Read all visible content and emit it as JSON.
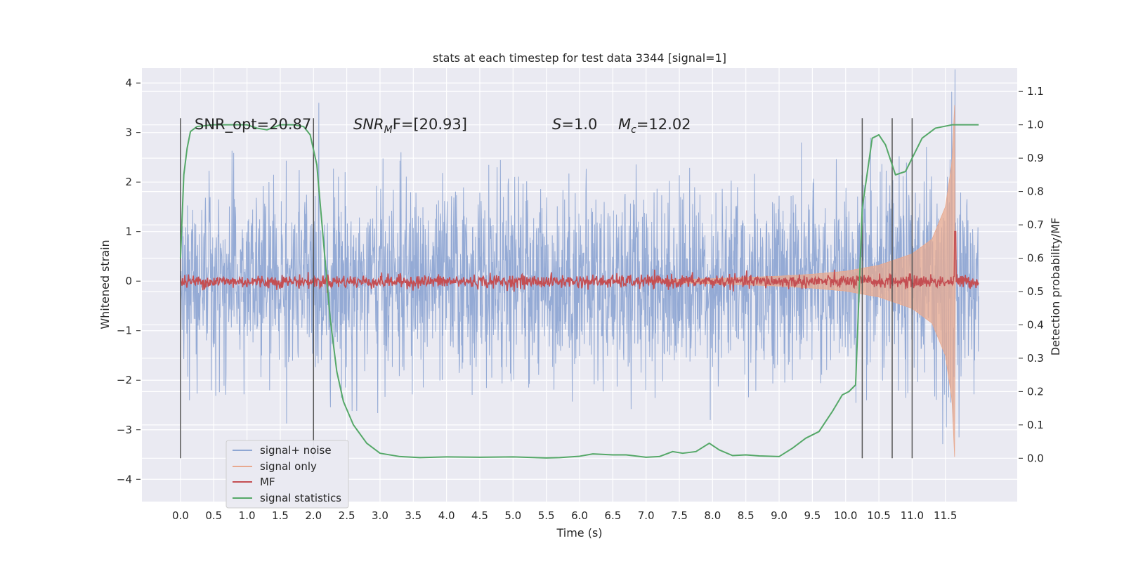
{
  "chart_data": {
    "type": "line",
    "title": "stats at each timestep for test data 3344 [signal=1]",
    "xlabel": "Time (s)",
    "ylabel": "Whitened strain",
    "y2label": "Detection probability/MF",
    "xlim": [
      -0.58,
      12.58
    ],
    "ylim": [
      -4.45,
      4.3
    ],
    "y2lim": [
      -0.13,
      1.17
    ],
    "x_ticks": [
      "0.0",
      "0.5",
      "1.0",
      "1.5",
      "2.0",
      "2.5",
      "3.0",
      "3.5",
      "4.0",
      "4.5",
      "5.0",
      "5.5",
      "6.0",
      "6.5",
      "7.0",
      "7.5",
      "8.0",
      "8.5",
      "9.0",
      "9.5",
      "10.0",
      "10.5",
      "11.0",
      "11.5"
    ],
    "y_ticks": [
      "4",
      "3",
      "2",
      "1",
      "0",
      "−1",
      "−2",
      "−3",
      "−4"
    ],
    "y2_ticks": [
      "1.1",
      "1.0",
      "0.9",
      "0.8",
      "0.7",
      "0.6",
      "0.5",
      "0.4",
      "0.3",
      "0.2",
      "0.1",
      "0.0"
    ],
    "grid": true,
    "legend_position": "lower-left",
    "annotations": {
      "snr_opt": "SNR_opt=20.87",
      "snr_mf_main": "SNR",
      "snr_mf_sub": "M",
      "snr_mf_rest": "F=[20.93]",
      "s_main": "S",
      "s_rest": "=1.0",
      "mc_main": "M",
      "mc_sub": "c",
      "mc_rest": "=12.02"
    },
    "vertical_markers_s": [
      0.0,
      2.0,
      10.25,
      10.7,
      11.0
    ],
    "series": [
      {
        "name": "signal+ noise",
        "color": "#8fa7d3",
        "axis": "left",
        "x_range": [
          0.0,
          12.0
        ],
        "typical_envelope": [
          -2.4,
          2.4
        ],
        "extreme_range": [
          -4.1,
          3.6
        ]
      },
      {
        "name": "signal only",
        "color": "#e8a98f",
        "axis": "left",
        "envelope_t": [
          7.0,
          8.0,
          9.0,
          9.5,
          10.0,
          10.5,
          11.0,
          11.3,
          11.5,
          11.6,
          11.65
        ],
        "envelope_amp": [
          0.02,
          0.05,
          0.1,
          0.14,
          0.2,
          0.32,
          0.55,
          0.85,
          1.5,
          2.4,
          3.9
        ]
      },
      {
        "name": "MF",
        "color": "#c44e52",
        "axis": "right",
        "baseline": 0.53,
        "noise_amp": 0.01,
        "spike": {
          "x": 11.65,
          "y": 0.68
        }
      },
      {
        "name": "signal statistics",
        "color": "#55a868",
        "axis": "right",
        "x": [
          0.0,
          0.05,
          0.1,
          0.15,
          0.25,
          0.5,
          0.8,
          1.0,
          1.15,
          1.3,
          1.5,
          1.7,
          1.85,
          1.95,
          2.05,
          2.15,
          2.25,
          2.35,
          2.45,
          2.6,
          2.8,
          3.0,
          3.3,
          3.6,
          4.0,
          4.5,
          5.0,
          5.5,
          5.7,
          6.0,
          6.2,
          6.5,
          6.7,
          7.0,
          7.2,
          7.4,
          7.55,
          7.75,
          7.95,
          8.1,
          8.3,
          8.5,
          8.7,
          9.0,
          9.2,
          9.4,
          9.6,
          9.8,
          9.95,
          10.05,
          10.15,
          10.25,
          10.4,
          10.5,
          10.6,
          10.75,
          10.9,
          11.0,
          11.15,
          11.35,
          11.6,
          12.0
        ],
        "y": [
          0.6,
          0.85,
          0.93,
          0.98,
          0.995,
          1.0,
          1.0,
          1.0,
          0.99,
          0.985,
          1.0,
          1.0,
          0.995,
          0.97,
          0.88,
          0.65,
          0.42,
          0.26,
          0.17,
          0.1,
          0.045,
          0.015,
          0.005,
          0.002,
          0.004,
          0.003,
          0.004,
          0.001,
          0.002,
          0.006,
          0.013,
          0.01,
          0.01,
          0.003,
          0.005,
          0.02,
          0.015,
          0.02,
          0.045,
          0.025,
          0.008,
          0.01,
          0.007,
          0.005,
          0.03,
          0.06,
          0.08,
          0.14,
          0.19,
          0.2,
          0.22,
          0.75,
          0.96,
          0.97,
          0.94,
          0.85,
          0.86,
          0.9,
          0.96,
          0.99,
          1.0,
          1.0
        ]
      }
    ]
  }
}
